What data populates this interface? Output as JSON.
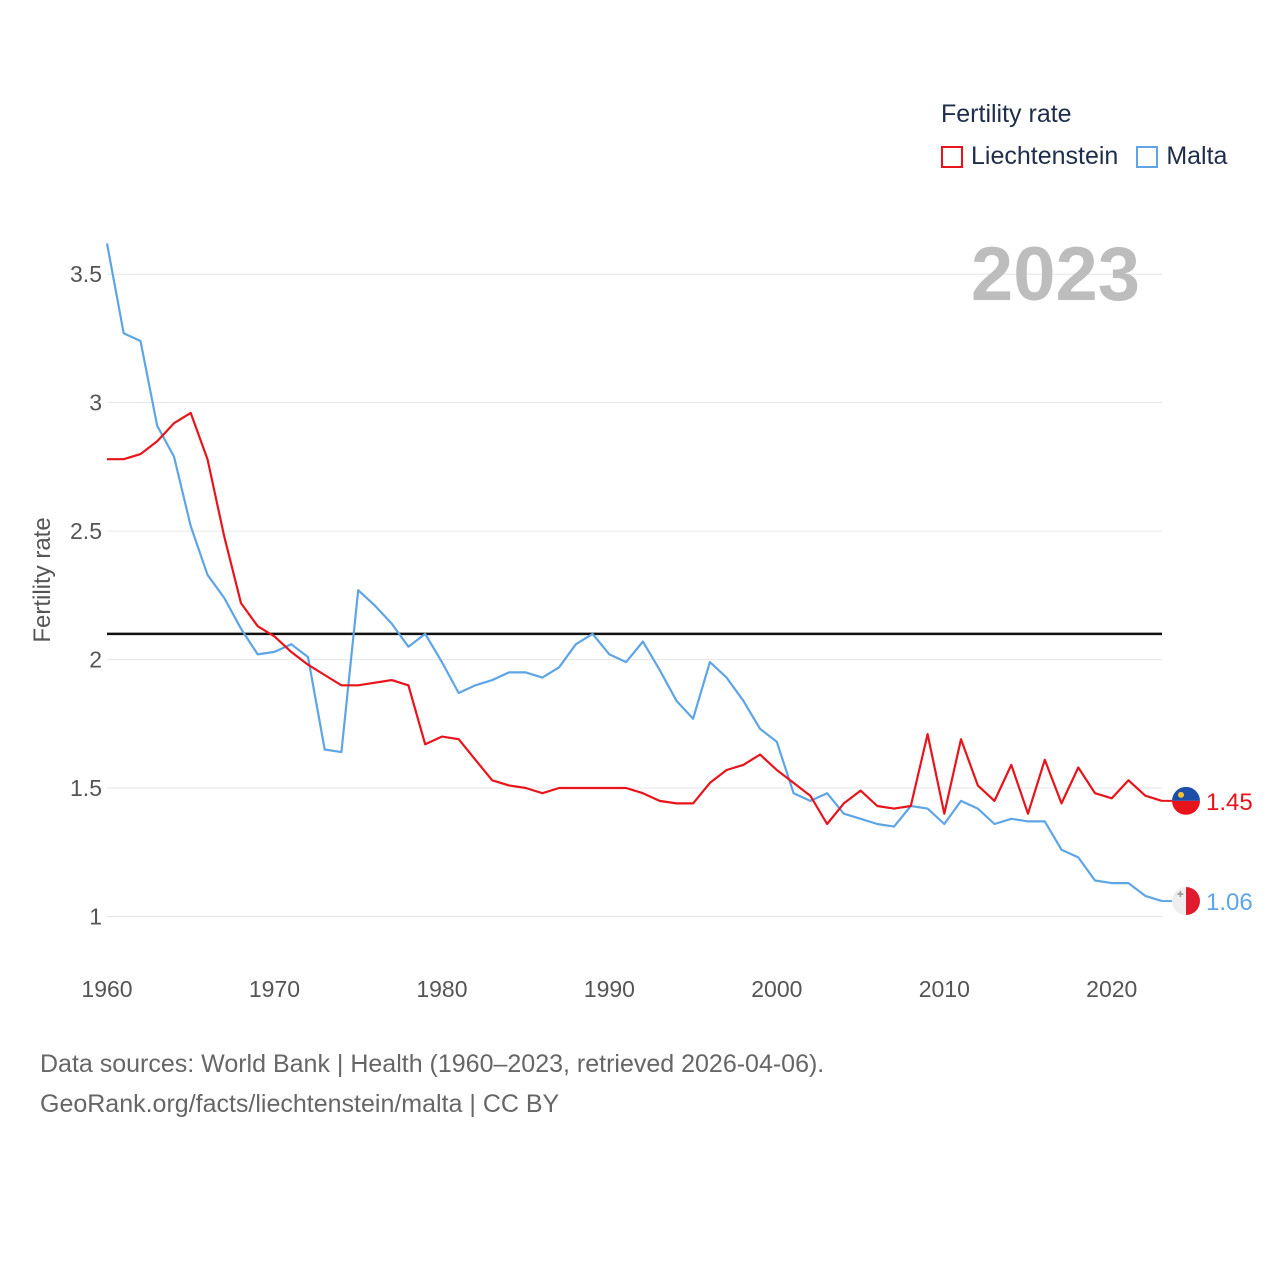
{
  "legend": {
    "title": "Fertility rate",
    "items": [
      {
        "label": "Liechtenstein",
        "color": "#e8141b"
      },
      {
        "label": "Malta",
        "color": "#5ea5e6"
      }
    ]
  },
  "year_label": "2023",
  "footer": {
    "line1": "Data sources: World Bank | Health (1960–2023, retrieved 2026-04-06).",
    "line2": "GeoRank.org/facts/liechtenstein/malta | CC BY"
  },
  "chart_data": {
    "type": "line",
    "title": "Fertility rate",
    "xlabel": "",
    "ylabel": "Fertility rate",
    "xlim": [
      1960,
      2023
    ],
    "ylim": [
      0.85,
      3.75
    ],
    "x_ticks": [
      1960,
      1970,
      1980,
      1990,
      2000,
      2010,
      2020
    ],
    "y_ticks": [
      1,
      1.5,
      2,
      2.5,
      3,
      3.5
    ],
    "y_tick_labels": [
      "1",
      "1.5",
      "2",
      "2.5",
      "3",
      "3.5"
    ],
    "grid": true,
    "reference_line": 2.1,
    "x": [
      1960,
      1961,
      1962,
      1963,
      1964,
      1965,
      1966,
      1967,
      1968,
      1969,
      1970,
      1971,
      1972,
      1973,
      1974,
      1975,
      1976,
      1977,
      1978,
      1979,
      1980,
      1981,
      1982,
      1983,
      1984,
      1985,
      1986,
      1987,
      1988,
      1989,
      1990,
      1991,
      1992,
      1993,
      1994,
      1995,
      1996,
      1997,
      1998,
      1999,
      2000,
      2001,
      2002,
      2003,
      2004,
      2005,
      2006,
      2007,
      2008,
      2009,
      2010,
      2011,
      2012,
      2013,
      2014,
      2015,
      2016,
      2017,
      2018,
      2019,
      2020,
      2021,
      2022,
      2023
    ],
    "series": [
      {
        "name": "Liechtenstein",
        "color": "#e8141b",
        "end_label": "1.45",
        "values": [
          2.78,
          2.78,
          2.8,
          2.85,
          2.92,
          2.96,
          2.78,
          2.48,
          2.22,
          2.13,
          2.09,
          2.03,
          1.98,
          1.94,
          1.9,
          1.9,
          1.91,
          1.92,
          1.9,
          1.67,
          1.7,
          1.69,
          1.61,
          1.53,
          1.51,
          1.5,
          1.48,
          1.5,
          1.5,
          1.5,
          1.5,
          1.5,
          1.48,
          1.45,
          1.44,
          1.44,
          1.52,
          1.57,
          1.59,
          1.63,
          1.57,
          1.52,
          1.47,
          1.36,
          1.44,
          1.49,
          1.43,
          1.42,
          1.43,
          1.71,
          1.4,
          1.69,
          1.51,
          1.45,
          1.59,
          1.4,
          1.61,
          1.44,
          1.58,
          1.48,
          1.46,
          1.53,
          1.47,
          1.45
        ]
      },
      {
        "name": "Malta",
        "color": "#5ea5e6",
        "end_label": "1.06",
        "values": [
          3.62,
          3.27,
          3.24,
          2.91,
          2.79,
          2.52,
          2.33,
          2.24,
          2.12,
          2.02,
          2.03,
          2.06,
          2.01,
          1.65,
          1.64,
          2.27,
          2.21,
          2.14,
          2.05,
          2.1,
          1.99,
          1.87,
          1.9,
          1.92,
          1.95,
          1.95,
          1.93,
          1.97,
          2.06,
          2.1,
          2.02,
          1.99,
          2.07,
          1.96,
          1.84,
          1.77,
          1.99,
          1.93,
          1.84,
          1.73,
          1.68,
          1.48,
          1.45,
          1.48,
          1.4,
          1.38,
          1.36,
          1.35,
          1.43,
          1.42,
          1.36,
          1.45,
          1.42,
          1.36,
          1.38,
          1.37,
          1.37,
          1.26,
          1.23,
          1.14,
          1.13,
          1.13,
          1.08,
          1.06
        ]
      }
    ]
  }
}
